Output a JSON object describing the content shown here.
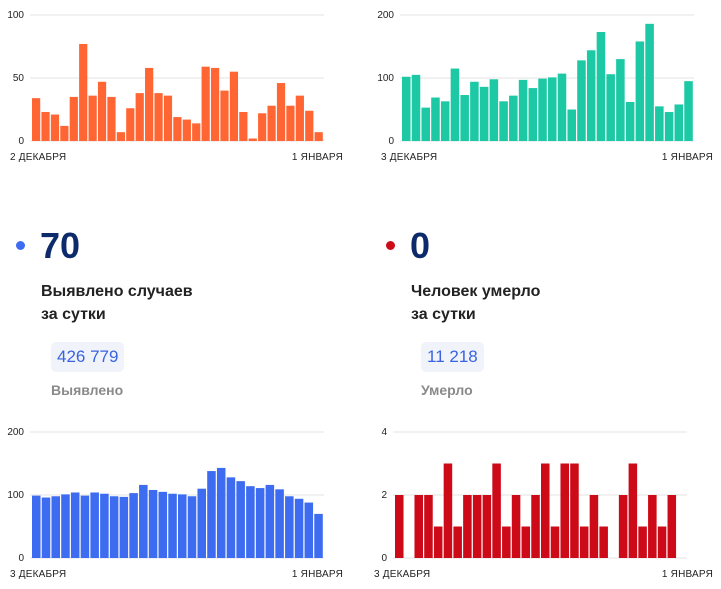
{
  "chart_data": [
    {
      "id": "chart-top-left",
      "type": "bar",
      "color": "#ff6633",
      "ylim": [
        0,
        100
      ],
      "yticks": [
        0,
        50,
        100
      ],
      "x_start_label": "2 ДЕКАБРЯ",
      "x_end_label": "1 ЯНВАРЯ",
      "values": [
        34,
        23,
        21,
        12,
        35,
        77,
        36,
        47,
        35,
        7,
        26,
        38,
        58,
        38,
        36,
        19,
        17,
        14,
        59,
        58,
        40,
        55,
        23,
        2,
        22,
        28,
        46,
        28,
        36,
        24,
        7
      ]
    },
    {
      "id": "chart-top-right",
      "type": "bar",
      "color": "#1dc9a4",
      "ylim": [
        0,
        200
      ],
      "yticks": [
        0,
        100,
        200
      ],
      "x_start_label": "3 ДЕКАБРЯ",
      "x_end_label": "1 ЯНВАРЯ",
      "values": [
        102,
        105,
        53,
        69,
        63,
        115,
        73,
        94,
        86,
        98,
        63,
        72,
        97,
        84,
        99,
        101,
        107,
        50,
        128,
        144,
        173,
        106,
        130,
        62,
        158,
        186,
        55,
        46,
        58,
        95
      ]
    },
    {
      "id": "chart-bottom-left",
      "type": "bar",
      "color": "#3d6cf0",
      "ylim": [
        0,
        200
      ],
      "yticks": [
        0,
        100,
        200
      ],
      "x_start_label": "3 ДЕКАБРЯ",
      "x_end_label": "1 ЯНВАРЯ",
      "values": [
        99,
        96,
        98,
        101,
        104,
        99,
        104,
        102,
        98,
        97,
        103,
        116,
        108,
        105,
        102,
        101,
        98,
        110,
        138,
        143,
        128,
        122,
        114,
        111,
        116,
        109,
        98,
        94,
        88,
        70
      ]
    },
    {
      "id": "chart-bottom-right",
      "type": "bar",
      "color": "#cc0a18",
      "ylim": [
        0,
        4
      ],
      "yticks": [
        0,
        2,
        4
      ],
      "x_start_label": "3 ДЕКАБРЯ",
      "x_end_label": "1 ЯНВАРЯ",
      "values": [
        2,
        0,
        2,
        2,
        1,
        3,
        1,
        2,
        2,
        2,
        3,
        1,
        2,
        1,
        2,
        3,
        1,
        3,
        3,
        1,
        2,
        1,
        0,
        2,
        3,
        1,
        2,
        1,
        2,
        0
      ]
    }
  ],
  "stats": {
    "cases": {
      "dot_color": "#3d6cf0",
      "daily": "70",
      "label_line1": "Выявлено случаев",
      "label_line2": "за сутки",
      "total": "426 779",
      "total_label": "Выявлено"
    },
    "deaths": {
      "dot_color": "#cc0a18",
      "daily": "0",
      "label_line1": "Человек умерло",
      "label_line2": "за сутки",
      "total": "11 218",
      "total_label": "Умерло"
    }
  }
}
